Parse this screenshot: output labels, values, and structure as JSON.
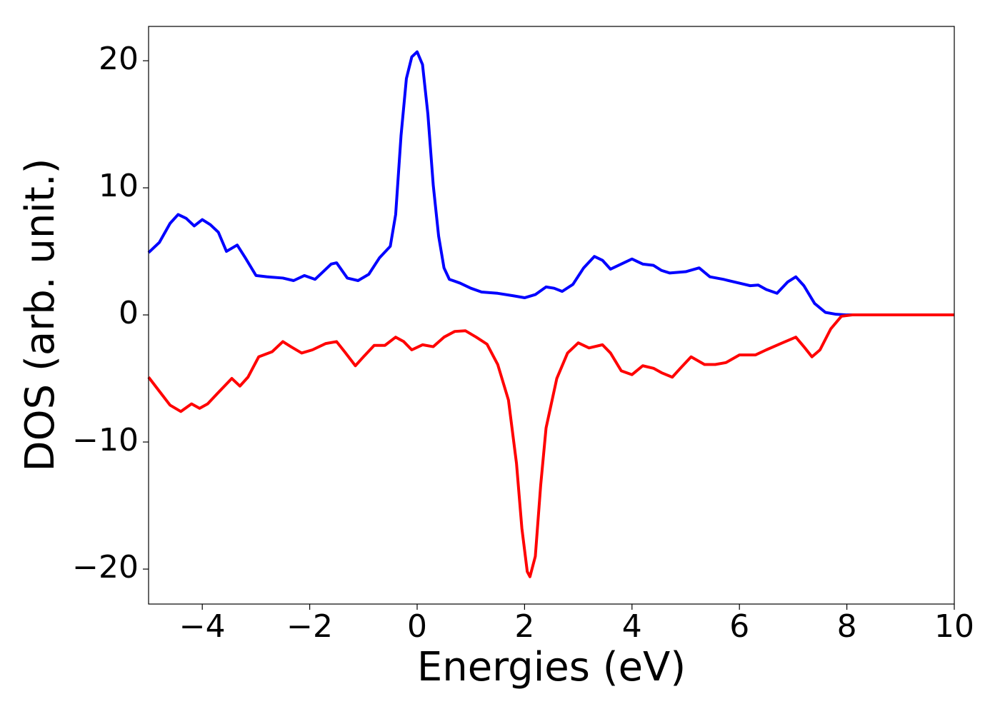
{
  "chart_data": {
    "type": "line",
    "xlabel": "Energies (eV)",
    "ylabel": "DOS (arb. unit.)",
    "xlim": [
      -5,
      10
    ],
    "ylim": [
      -22.75,
      22.7
    ],
    "xticks": [
      {
        "value": -4,
        "label": "−4"
      },
      {
        "value": -2,
        "label": "−2"
      },
      0,
      2,
      4,
      6,
      8,
      10
    ],
    "yticks": [
      {
        "value": -20,
        "label": "−20"
      },
      {
        "value": -10,
        "label": "−10"
      },
      0,
      10,
      20
    ],
    "grid": false,
    "series": [
      {
        "color": "#0000ff",
        "x": [
          -5,
          -4.8,
          -4.6,
          -4.45,
          -4.3,
          -4.15,
          -4.0,
          -3.85,
          -3.7,
          -3.55,
          -3.35,
          -3.2,
          -3.0,
          -2.8,
          -2.5,
          -2.3,
          -2.1,
          -1.9,
          -1.6,
          -1.5,
          -1.3,
          -1.1,
          -0.9,
          -0.7,
          -0.5,
          -0.4,
          -0.3,
          -0.2,
          -0.1,
          0,
          0.1,
          0.2,
          0.3,
          0.4,
          0.5,
          0.6,
          0.8,
          1.0,
          1.2,
          1.5,
          1.8,
          2.0,
          2.2,
          2.4,
          2.55,
          2.7,
          2.9,
          3.1,
          3.3,
          3.45,
          3.6,
          3.8,
          4.0,
          4.2,
          4.4,
          4.55,
          4.7,
          5.0,
          5.25,
          5.45,
          5.7,
          6.0,
          6.2,
          6.35,
          6.5,
          6.7,
          6.9,
          7.05,
          7.2,
          7.4,
          7.6,
          7.8,
          8.0,
          10
        ],
        "values": [
          4.9,
          5.7,
          7.2,
          7.9,
          7.6,
          7.0,
          7.5,
          7.1,
          6.5,
          5.0,
          5.5,
          4.5,
          3.1,
          3.0,
          2.9,
          2.7,
          3.1,
          2.8,
          4.0,
          4.1,
          2.9,
          2.7,
          3.2,
          4.5,
          5.4,
          7.9,
          14.1,
          18.6,
          20.3,
          20.7,
          19.7,
          15.8,
          10.2,
          6.2,
          3.7,
          2.8,
          2.5,
          2.1,
          1.8,
          1.7,
          1.5,
          1.35,
          1.6,
          2.2,
          2.1,
          1.85,
          2.4,
          3.7,
          4.6,
          4.3,
          3.6,
          4.0,
          4.4,
          4.0,
          3.9,
          3.5,
          3.3,
          3.4,
          3.7,
          3.0,
          2.8,
          2.5,
          2.3,
          2.35,
          2.0,
          1.7,
          2.6,
          3.0,
          2.3,
          0.9,
          0.2,
          0.05,
          0,
          0
        ]
      },
      {
        "color": "#ff0000",
        "x": [
          -5,
          -4.8,
          -4.6,
          -4.4,
          -4.2,
          -4.05,
          -3.9,
          -3.7,
          -3.45,
          -3.3,
          -3.15,
          -2.95,
          -2.7,
          -2.5,
          -2.35,
          -2.15,
          -1.95,
          -1.7,
          -1.5,
          -1.35,
          -1.15,
          -1.0,
          -0.8,
          -0.6,
          -0.4,
          -0.25,
          -0.1,
          0.1,
          0.3,
          0.5,
          0.7,
          0.9,
          1.1,
          1.3,
          1.5,
          1.7,
          1.85,
          1.95,
          2.05,
          2.1,
          2.2,
          2.3,
          2.4,
          2.6,
          2.8,
          3.0,
          3.2,
          3.45,
          3.6,
          3.8,
          4.0,
          4.2,
          4.4,
          4.55,
          4.75,
          4.9,
          5.1,
          5.35,
          5.55,
          5.75,
          6.0,
          6.3,
          6.5,
          6.8,
          7.05,
          7.2,
          7.35,
          7.5,
          7.7,
          7.9,
          8.1,
          10
        ],
        "values": [
          -4.9,
          -6.0,
          -7.1,
          -7.6,
          -7.0,
          -7.35,
          -7.0,
          -6.1,
          -5.0,
          -5.6,
          -4.9,
          -3.3,
          -2.9,
          -2.1,
          -2.5,
          -3.0,
          -2.75,
          -2.25,
          -2.1,
          -2.9,
          -4.0,
          -3.3,
          -2.4,
          -2.4,
          -1.75,
          -2.1,
          -2.75,
          -2.35,
          -2.5,
          -1.75,
          -1.3,
          -1.25,
          -1.75,
          -2.3,
          -3.9,
          -6.7,
          -11.7,
          -16.8,
          -20.2,
          -20.6,
          -19.0,
          -13.4,
          -8.9,
          -5.0,
          -3.0,
          -2.2,
          -2.6,
          -2.35,
          -3.0,
          -4.4,
          -4.7,
          -4.0,
          -4.2,
          -4.55,
          -4.9,
          -4.2,
          -3.3,
          -3.9,
          -3.9,
          -3.75,
          -3.15,
          -3.15,
          -2.75,
          -2.2,
          -1.75,
          -2.5,
          -3.3,
          -2.75,
          -1.1,
          -0.1,
          0,
          0
        ]
      }
    ]
  }
}
